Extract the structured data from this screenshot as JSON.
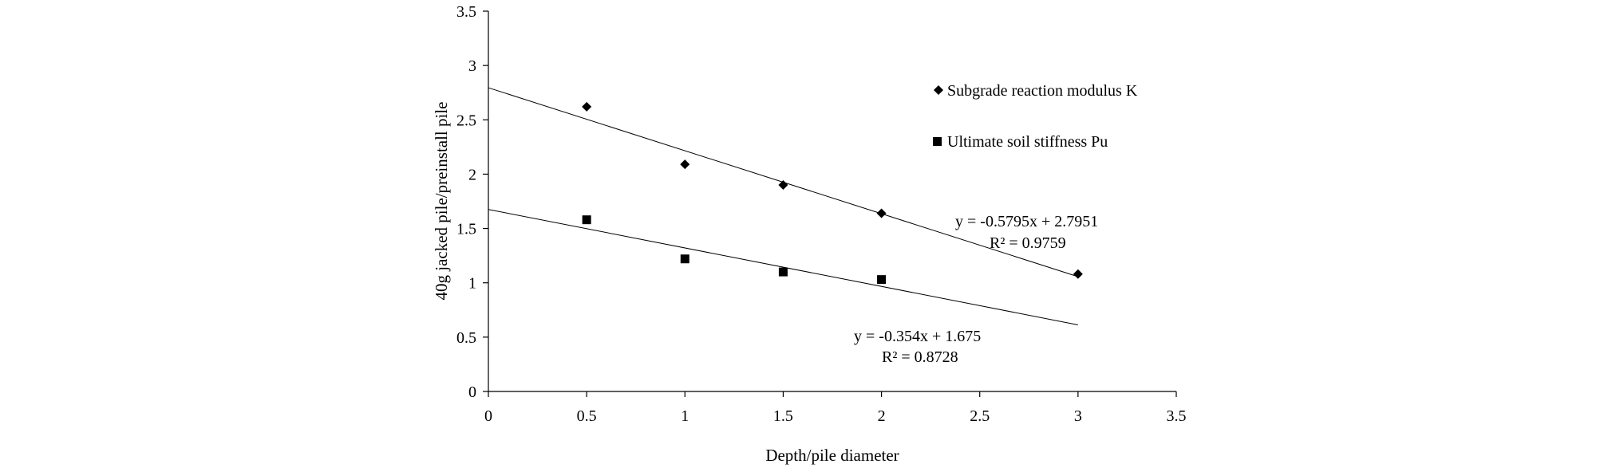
{
  "chart_data": {
    "type": "scatter",
    "title": "",
    "xlabel": "Depth/pile diameter",
    "ylabel": "40g jacked pile/preinstall pile",
    "xlim": [
      0,
      3.5
    ],
    "ylim": [
      0,
      3.5
    ],
    "xticks": [
      "0",
      "0.5",
      "1",
      "1.5",
      "2",
      "2.5",
      "3",
      "3.5"
    ],
    "yticks": [
      "0",
      "0.5",
      "1",
      "1.5",
      "2",
      "2.5",
      "3",
      "3.5"
    ],
    "grid": false,
    "legend_position": "top-right",
    "series": [
      {
        "name": "Subgrade reaction modulus K",
        "marker": "diamond",
        "color": "#000000",
        "x": [
          0.5,
          1,
          1.5,
          2,
          3
        ],
        "y": [
          2.62,
          2.09,
          1.9,
          1.64,
          1.08
        ],
        "trendline": {
          "slope": -0.5795,
          "intercept": 2.7951,
          "x_range": [
            0,
            3
          ],
          "equation": "y = -0.5795x + 2.7951",
          "r2": "R² = 0.9759"
        }
      },
      {
        "name": "Ultimate soil stiffness Pu",
        "marker": "square",
        "color": "#000000",
        "x": [
          0.5,
          1,
          1.5,
          2
        ],
        "y": [
          1.58,
          1.22,
          1.1,
          1.03
        ],
        "trendline": {
          "slope": -0.354,
          "intercept": 1.675,
          "x_range": [
            0,
            3
          ],
          "equation": "y = -0.354x + 1.675",
          "r2": "R² = 0.8728"
        }
      }
    ]
  }
}
